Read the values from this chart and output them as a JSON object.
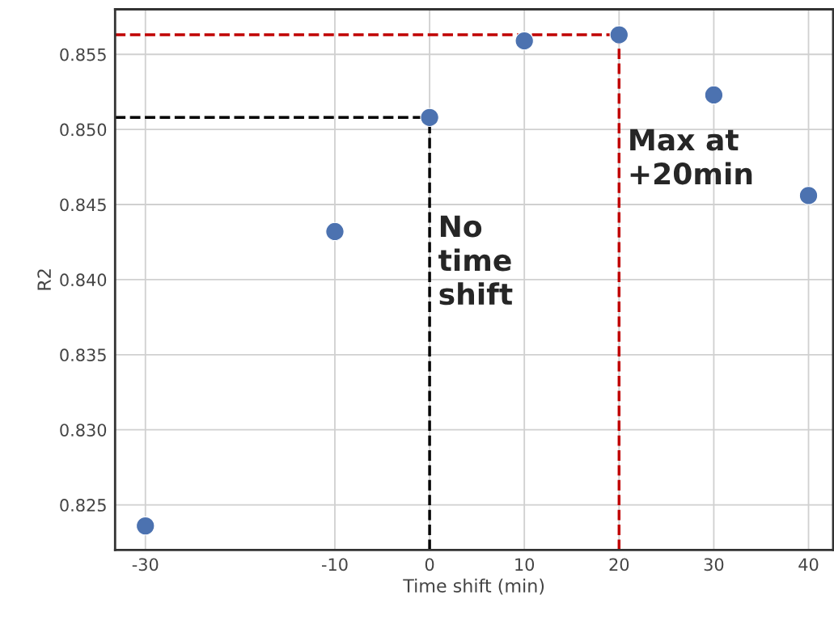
{
  "chart_data": {
    "type": "scatter",
    "xlabel": "Time shift (min)",
    "ylabel": "R2",
    "x": [
      -30,
      -10,
      0,
      10,
      20,
      30,
      40
    ],
    "values": [
      0.8236,
      0.8432,
      0.8508,
      0.8559,
      0.8563,
      0.8523,
      0.8456
    ],
    "color": "#4c72b0",
    "marker": "circle",
    "xlim": [
      -33.2,
      42.6
    ],
    "ylim": [
      0.822,
      0.858
    ],
    "xticks": [
      -30,
      -10,
      0,
      10,
      20,
      30,
      40
    ],
    "yticks": [
      {
        "value": 0.825,
        "label": "0.825"
      },
      {
        "value": 0.83,
        "label": "0.830"
      },
      {
        "value": 0.835,
        "label": "0.835"
      },
      {
        "value": 0.84,
        "label": "0.840"
      },
      {
        "value": 0.845,
        "label": "0.845"
      },
      {
        "value": 0.85,
        "label": "0.850"
      },
      {
        "value": 0.855,
        "label": "0.855"
      }
    ],
    "grid": true,
    "ref_lines": [
      {
        "axis": "y",
        "value": 0.8508,
        "color": "#000000",
        "line_style": "dashed"
      },
      {
        "axis": "x",
        "value": 0,
        "color": "#000000",
        "line_style": "dashed",
        "label": "No\ntime\nshift"
      },
      {
        "axis": "y",
        "value": 0.8563,
        "color": "#c00000",
        "line_style": "dashed"
      },
      {
        "axis": "x",
        "value": 20,
        "color": "#c00000",
        "line_style": "dashed",
        "label": "Max at\n+20min"
      }
    ]
  }
}
